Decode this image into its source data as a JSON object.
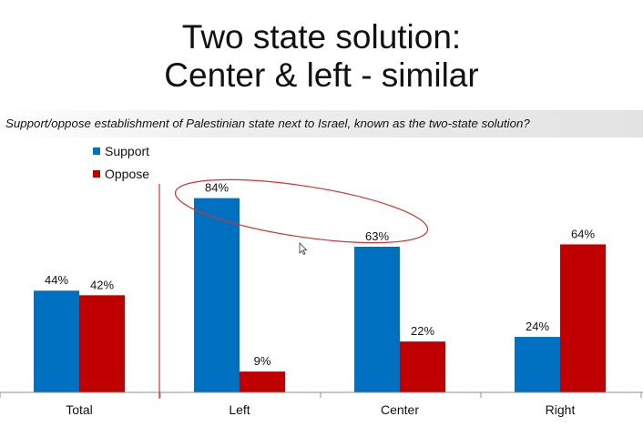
{
  "slide": {
    "title_lines": [
      "Two state solution:",
      "Center & left - similar"
    ],
    "question": "Support/oppose establishment of Palestinian state next to Israel, known as the two-state solution?"
  },
  "colors": {
    "support": "#0070c0",
    "oppose": "#c00000",
    "divider": "#e03030",
    "highlight_ellipse": "#d63030",
    "axis": "#909090"
  },
  "chart_data": {
    "type": "bar",
    "categories": [
      "Total",
      "Left",
      "Center",
      "Right"
    ],
    "series": [
      {
        "name": "Support",
        "values": [
          44,
          84,
          63,
          24
        ]
      },
      {
        "name": "Oppose",
        "values": [
          42,
          9,
          22,
          64
        ]
      }
    ],
    "value_format": "percent",
    "ylim": [
      0,
      100
    ],
    "grid": false,
    "legend_position": "top-left",
    "annotations": [
      "vertical divider between Total and Left",
      "ellipse highlighting Left and Center support values"
    ]
  }
}
